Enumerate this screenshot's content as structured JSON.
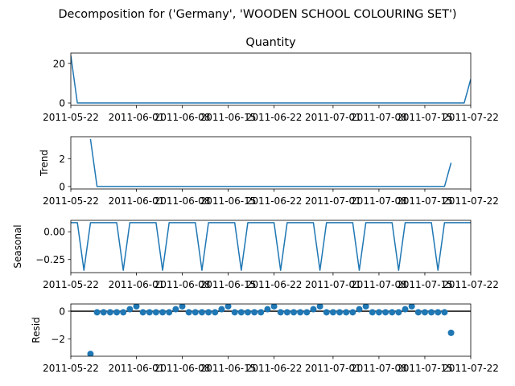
{
  "figure": {
    "suptitle": "Decomposition for ('Germany', 'WOODEN SCHOOL COLOURING SET')"
  },
  "colors": {
    "series": "#1f77b4",
    "axes": "#000000",
    "zero_line": "#000000"
  },
  "chart_data": [
    {
      "type": "line",
      "title": "Quantity",
      "xlabel": "",
      "ylabel": "",
      "x": [
        "2011-05-22",
        "2011-05-23",
        "2011-05-24",
        "2011-05-25",
        "2011-05-26",
        "2011-05-27",
        "2011-05-28",
        "2011-05-29",
        "2011-05-30",
        "2011-05-31",
        "2011-06-01",
        "2011-06-02",
        "2011-06-03",
        "2011-06-04",
        "2011-06-05",
        "2011-06-06",
        "2011-06-07",
        "2011-06-08",
        "2011-06-09",
        "2011-06-10",
        "2011-06-11",
        "2011-06-12",
        "2011-06-13",
        "2011-06-14",
        "2011-06-15",
        "2011-06-16",
        "2011-06-17",
        "2011-06-18",
        "2011-06-19",
        "2011-06-20",
        "2011-06-21",
        "2011-06-22",
        "2011-06-23",
        "2011-06-24",
        "2011-06-25",
        "2011-06-26",
        "2011-06-27",
        "2011-06-28",
        "2011-06-29",
        "2011-06-30",
        "2011-07-01",
        "2011-07-02",
        "2011-07-03",
        "2011-07-04",
        "2011-07-05",
        "2011-07-06",
        "2011-07-07",
        "2011-07-08",
        "2011-07-09",
        "2011-07-10",
        "2011-07-11",
        "2011-07-12",
        "2011-07-13",
        "2011-07-14",
        "2011-07-15",
        "2011-07-16",
        "2011-07-17",
        "2011-07-18",
        "2011-07-19",
        "2011-07-20",
        "2011-07-21",
        "2011-07-22"
      ],
      "values": [
        24,
        0,
        0,
        0,
        0,
        0,
        0,
        0,
        0,
        0,
        0,
        0,
        0,
        0,
        0,
        0,
        0,
        0,
        0,
        0,
        0,
        0,
        0,
        0,
        0,
        0,
        0,
        0,
        0,
        0,
        0,
        0,
        0,
        0,
        0,
        0,
        0,
        0,
        0,
        0,
        0,
        0,
        0,
        0,
        0,
        0,
        0,
        0,
        0,
        0,
        0,
        0,
        0,
        0,
        0,
        0,
        0,
        0,
        0,
        0,
        0,
        12
      ],
      "ylim": [
        -1.2,
        25.2
      ],
      "yticks": [
        0,
        20
      ],
      "xticks": [
        "2011-05-22",
        "2011-06-01",
        "2011-06-08",
        "2011-06-15",
        "2011-06-22",
        "2011-07-01",
        "2011-07-08",
        "2011-07-15",
        "2011-07-22"
      ],
      "xtick_labels": [
        "2011-05-22",
        "2011-06-01",
        "2011-06-08",
        "2011-06-15",
        "2011-06-22",
        "2011-07-01",
        "2011-07-08",
        "2011-07-15",
        "2011-07-22"
      ],
      "xlim": [
        "2011-05-22",
        "2011-07-22"
      ]
    },
    {
      "type": "line",
      "title": "",
      "xlabel": "",
      "ylabel": "Trend",
      "x": [
        "2011-05-25",
        "2011-05-26",
        "2011-05-27",
        "2011-05-28",
        "2011-05-29",
        "2011-05-30",
        "2011-05-31",
        "2011-06-01",
        "2011-06-02",
        "2011-06-03",
        "2011-06-04",
        "2011-06-05",
        "2011-06-06",
        "2011-06-07",
        "2011-06-08",
        "2011-06-09",
        "2011-06-10",
        "2011-06-11",
        "2011-06-12",
        "2011-06-13",
        "2011-06-14",
        "2011-06-15",
        "2011-06-16",
        "2011-06-17",
        "2011-06-18",
        "2011-06-19",
        "2011-06-20",
        "2011-06-21",
        "2011-06-22",
        "2011-06-23",
        "2011-06-24",
        "2011-06-25",
        "2011-06-26",
        "2011-06-27",
        "2011-06-28",
        "2011-06-29",
        "2011-06-30",
        "2011-07-01",
        "2011-07-02",
        "2011-07-03",
        "2011-07-04",
        "2011-07-05",
        "2011-07-06",
        "2011-07-07",
        "2011-07-08",
        "2011-07-09",
        "2011-07-10",
        "2011-07-11",
        "2011-07-12",
        "2011-07-13",
        "2011-07-14",
        "2011-07-15",
        "2011-07-16",
        "2011-07-17",
        "2011-07-18",
        "2011-07-19"
      ],
      "values": [
        3.43,
        0,
        0,
        0,
        0,
        0,
        0,
        0,
        0,
        0,
        0,
        0,
        0,
        0,
        0,
        0,
        0,
        0,
        0,
        0,
        0,
        0,
        0,
        0,
        0,
        0,
        0,
        0,
        0,
        0,
        0,
        0,
        0,
        0,
        0,
        0,
        0,
        0,
        0,
        0,
        0,
        0,
        0,
        0,
        0,
        0,
        0,
        0,
        0,
        0,
        0,
        0,
        0,
        0,
        0,
        1.71
      ],
      "ylim": [
        -0.18,
        3.6
      ],
      "yticks": [
        0,
        2
      ],
      "xticks": [
        "2011-05-22",
        "2011-06-01",
        "2011-06-08",
        "2011-06-15",
        "2011-06-22",
        "2011-07-01",
        "2011-07-08",
        "2011-07-15",
        "2011-07-22"
      ],
      "xtick_labels": [
        "2011-05-22",
        "2011-06-01",
        "2011-06-08",
        "2011-06-15",
        "2011-06-22",
        "2011-07-01",
        "2011-07-08",
        "2011-07-15",
        "2011-07-22"
      ],
      "xlim": [
        "2011-05-22",
        "2011-07-22"
      ]
    },
    {
      "type": "line",
      "title": "",
      "xlabel": "",
      "ylabel": "Seasonal",
      "x": [
        "2011-05-22",
        "2011-05-23",
        "2011-05-24",
        "2011-05-25",
        "2011-05-26",
        "2011-05-27",
        "2011-05-28",
        "2011-05-29",
        "2011-05-30",
        "2011-05-31",
        "2011-06-01",
        "2011-06-02",
        "2011-06-03",
        "2011-06-04",
        "2011-06-05",
        "2011-06-06",
        "2011-06-07",
        "2011-06-08",
        "2011-06-09",
        "2011-06-10",
        "2011-06-11",
        "2011-06-12",
        "2011-06-13",
        "2011-06-14",
        "2011-06-15",
        "2011-06-16",
        "2011-06-17",
        "2011-06-18",
        "2011-06-19",
        "2011-06-20",
        "2011-06-21",
        "2011-06-22",
        "2011-06-23",
        "2011-06-24",
        "2011-06-25",
        "2011-06-26",
        "2011-06-27",
        "2011-06-28",
        "2011-06-29",
        "2011-06-30",
        "2011-07-01",
        "2011-07-02",
        "2011-07-03",
        "2011-07-04",
        "2011-07-05",
        "2011-07-06",
        "2011-07-07",
        "2011-07-08",
        "2011-07-09",
        "2011-07-10",
        "2011-07-11",
        "2011-07-12",
        "2011-07-13",
        "2011-07-14",
        "2011-07-15",
        "2011-07-16",
        "2011-07-17",
        "2011-07-18",
        "2011-07-19",
        "2011-07-20",
        "2011-07-21",
        "2011-07-22"
      ],
      "values": [
        0.082,
        0.082,
        -0.347,
        0.082,
        0.082,
        0.082,
        0.082,
        0.082,
        -0.347,
        0.082,
        0.082,
        0.082,
        0.082,
        0.082,
        -0.347,
        0.082,
        0.082,
        0.082,
        0.082,
        0.082,
        -0.347,
        0.082,
        0.082,
        0.082,
        0.082,
        0.082,
        -0.347,
        0.082,
        0.082,
        0.082,
        0.082,
        0.082,
        -0.347,
        0.082,
        0.082,
        0.082,
        0.082,
        0.082,
        -0.347,
        0.082,
        0.082,
        0.082,
        0.082,
        0.082,
        -0.347,
        0.082,
        0.082,
        0.082,
        0.082,
        0.082,
        -0.347,
        0.082,
        0.082,
        0.082,
        0.082,
        0.082,
        -0.347,
        0.082,
        0.082,
        0.082,
        0.082,
        0.082
      ],
      "ylim": [
        -0.368,
        0.103
      ],
      "yticks": [
        -0.25,
        0.0
      ],
      "ytick_labels": [
        "−0.25",
        "0.00"
      ],
      "xticks": [
        "2011-05-22",
        "2011-06-01",
        "2011-06-08",
        "2011-06-15",
        "2011-06-22",
        "2011-07-01",
        "2011-07-08",
        "2011-07-15",
        "2011-07-22"
      ],
      "xtick_labels": [
        "2011-05-22",
        "2011-06-01",
        "2011-06-08",
        "2011-06-15",
        "2011-06-22",
        "2011-07-01",
        "2011-07-08",
        "2011-07-15",
        "2011-07-22"
      ],
      "xlim": [
        "2011-05-22",
        "2011-07-22"
      ]
    },
    {
      "type": "scatter",
      "title": "",
      "xlabel": "",
      "ylabel": "Resid",
      "zero_line": true,
      "x": [
        "2011-05-25",
        "2011-05-26",
        "2011-05-27",
        "2011-05-28",
        "2011-05-29",
        "2011-05-30",
        "2011-05-31",
        "2011-06-01",
        "2011-06-02",
        "2011-06-03",
        "2011-06-04",
        "2011-06-05",
        "2011-06-06",
        "2011-06-07",
        "2011-06-08",
        "2011-06-09",
        "2011-06-10",
        "2011-06-11",
        "2011-06-12",
        "2011-06-13",
        "2011-06-14",
        "2011-06-15",
        "2011-06-16",
        "2011-06-17",
        "2011-06-18",
        "2011-06-19",
        "2011-06-20",
        "2011-06-21",
        "2011-06-22",
        "2011-06-23",
        "2011-06-24",
        "2011-06-25",
        "2011-06-26",
        "2011-06-27",
        "2011-06-28",
        "2011-06-29",
        "2011-06-30",
        "2011-07-01",
        "2011-07-02",
        "2011-07-03",
        "2011-07-04",
        "2011-07-05",
        "2011-07-06",
        "2011-07-07",
        "2011-07-08",
        "2011-07-09",
        "2011-07-10",
        "2011-07-11",
        "2011-07-12",
        "2011-07-13",
        "2011-07-14",
        "2011-07-15",
        "2011-07-16",
        "2011-07-17",
        "2011-07-18",
        "2011-07-19"
      ],
      "values": [
        -3.08,
        -0.08,
        -0.08,
        -0.08,
        -0.08,
        -0.08,
        0.14,
        0.35,
        -0.08,
        -0.08,
        -0.08,
        -0.08,
        -0.08,
        0.14,
        0.35,
        -0.08,
        -0.08,
        -0.08,
        -0.08,
        -0.08,
        0.14,
        0.35,
        -0.08,
        -0.08,
        -0.08,
        -0.08,
        -0.08,
        0.14,
        0.35,
        -0.08,
        -0.08,
        -0.08,
        -0.08,
        -0.08,
        0.14,
        0.35,
        -0.08,
        -0.08,
        -0.08,
        -0.08,
        -0.08,
        0.14,
        0.35,
        -0.08,
        -0.08,
        -0.08,
        -0.08,
        -0.08,
        0.14,
        0.35,
        -0.08,
        -0.08,
        -0.08,
        -0.08,
        -0.08,
        -1.56
      ],
      "ylim": [
        -3.25,
        0.52
      ],
      "yticks": [
        -2,
        0
      ],
      "ytick_labels": [
        "−2",
        "0"
      ],
      "xticks": [
        "2011-05-22",
        "2011-06-01",
        "2011-06-08",
        "2011-06-15",
        "2011-06-22",
        "2011-07-01",
        "2011-07-08",
        "2011-07-15",
        "2011-07-22"
      ],
      "xtick_labels": [
        "2011-05-22",
        "2011-06-01",
        "2011-06-08",
        "2011-06-15",
        "2011-06-22",
        "2011-07-01",
        "2011-07-08",
        "2011-07-15",
        "2011-07-22"
      ],
      "xlim": [
        "2011-05-22",
        "2011-07-22"
      ]
    }
  ]
}
